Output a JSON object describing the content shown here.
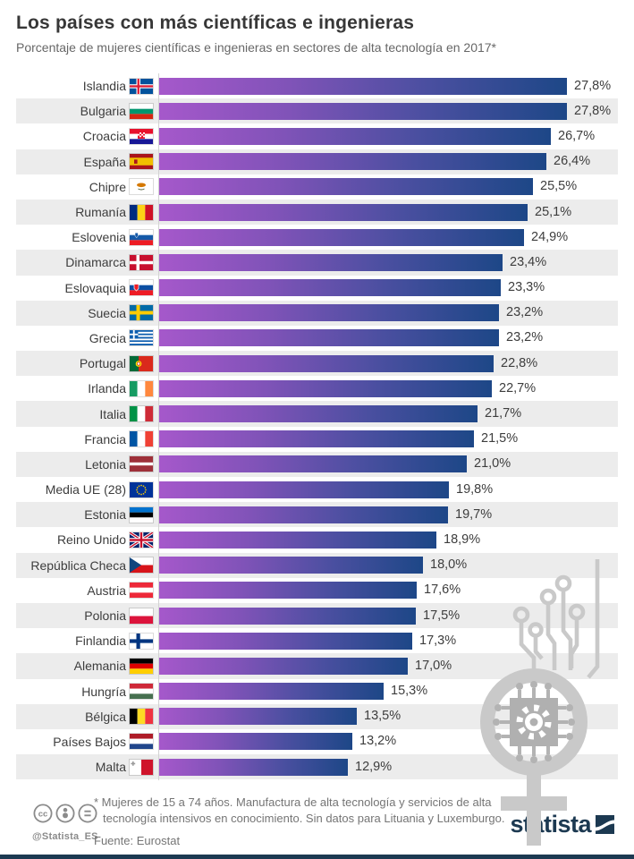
{
  "chart_data": {
    "type": "bar",
    "orientation": "horizontal",
    "title": "Los países con más científicas e ingenieras",
    "subtitle": "Porcentaje de mujeres científicas e ingenieras en sectores de alta tecnología en 2017*",
    "unit": "%",
    "xlim": [
      0,
      27.8
    ],
    "grid": false,
    "rows": [
      {
        "country": "Islandia",
        "flag": "is",
        "value": 27.8,
        "label": "27,8%"
      },
      {
        "country": "Bulgaria",
        "flag": "bg",
        "value": 27.8,
        "label": "27,8%"
      },
      {
        "country": "Croacia",
        "flag": "hr",
        "value": 26.7,
        "label": "26,7%"
      },
      {
        "country": "España",
        "flag": "es",
        "value": 26.4,
        "label": "26,4%"
      },
      {
        "country": "Chipre",
        "flag": "cy",
        "value": 25.5,
        "label": "25,5%"
      },
      {
        "country": "Rumanía",
        "flag": "ro",
        "value": 25.1,
        "label": "25,1%"
      },
      {
        "country": "Eslovenia",
        "flag": "si",
        "value": 24.9,
        "label": "24,9%"
      },
      {
        "country": "Dinamarca",
        "flag": "dk",
        "value": 23.4,
        "label": "23,4%"
      },
      {
        "country": "Eslovaquia",
        "flag": "sk",
        "value": 23.3,
        "label": "23,3%"
      },
      {
        "country": "Suecia",
        "flag": "se",
        "value": 23.2,
        "label": "23,2%"
      },
      {
        "country": "Grecia",
        "flag": "gr",
        "value": 23.2,
        "label": "23,2%"
      },
      {
        "country": "Portugal",
        "flag": "pt",
        "value": 22.8,
        "label": "22,8%"
      },
      {
        "country": "Irlanda",
        "flag": "ie",
        "value": 22.7,
        "label": "22,7%"
      },
      {
        "country": "Italia",
        "flag": "it",
        "value": 21.7,
        "label": "21,7%"
      },
      {
        "country": "Francia",
        "flag": "fr",
        "value": 21.5,
        "label": "21,5%"
      },
      {
        "country": "Letonia",
        "flag": "lv",
        "value": 21.0,
        "label": "21,0%"
      },
      {
        "country": "Media UE (28)",
        "flag": "eu",
        "value": 19.8,
        "label": "19,8%"
      },
      {
        "country": "Estonia",
        "flag": "ee",
        "value": 19.7,
        "label": "19,7%"
      },
      {
        "country": "Reino Unido",
        "flag": "gb",
        "value": 18.9,
        "label": "18,9%"
      },
      {
        "country": "República Checa",
        "flag": "cz",
        "value": 18.0,
        "label": "18,0%"
      },
      {
        "country": "Austria",
        "flag": "at",
        "value": 17.6,
        "label": "17,6%"
      },
      {
        "country": "Polonia",
        "flag": "pl",
        "value": 17.5,
        "label": "17,5%"
      },
      {
        "country": "Finlandia",
        "flag": "fi",
        "value": 17.3,
        "label": "17,3%"
      },
      {
        "country": "Alemania",
        "flag": "de",
        "value": 17.0,
        "label": "17,0%"
      },
      {
        "country": "Hungría",
        "flag": "hu",
        "value": 15.3,
        "label": "15,3%"
      },
      {
        "country": "Bélgica",
        "flag": "be",
        "value": 13.5,
        "label": "13,5%"
      },
      {
        "country": "Países Bajos",
        "flag": "nl",
        "value": 13.2,
        "label": "13,2%"
      },
      {
        "country": "Malta",
        "flag": "mt",
        "value": 12.9,
        "label": "12,9%"
      }
    ]
  },
  "footer": {
    "note": "* Mujeres de 15 a 74 años. Manufactura de alta tecnología y servicios de alta tecnología intensivos en conocimiento. Sin datos para Lituania y Luxemburgo.",
    "source": "Fuente: Eurostat",
    "handle": "@Statista_ES",
    "logo_text": "statista",
    "license_icons": [
      "cc-icon",
      "attribution-icon",
      "equals-icon"
    ]
  },
  "colors": {
    "bar_gradient_start": "#a658cb",
    "bar_gradient_end": "#1d4787",
    "stripe": "#ececec",
    "navy": "#1c3951",
    "watermark": "#c9c9c9",
    "text": "#3d3d3d"
  }
}
